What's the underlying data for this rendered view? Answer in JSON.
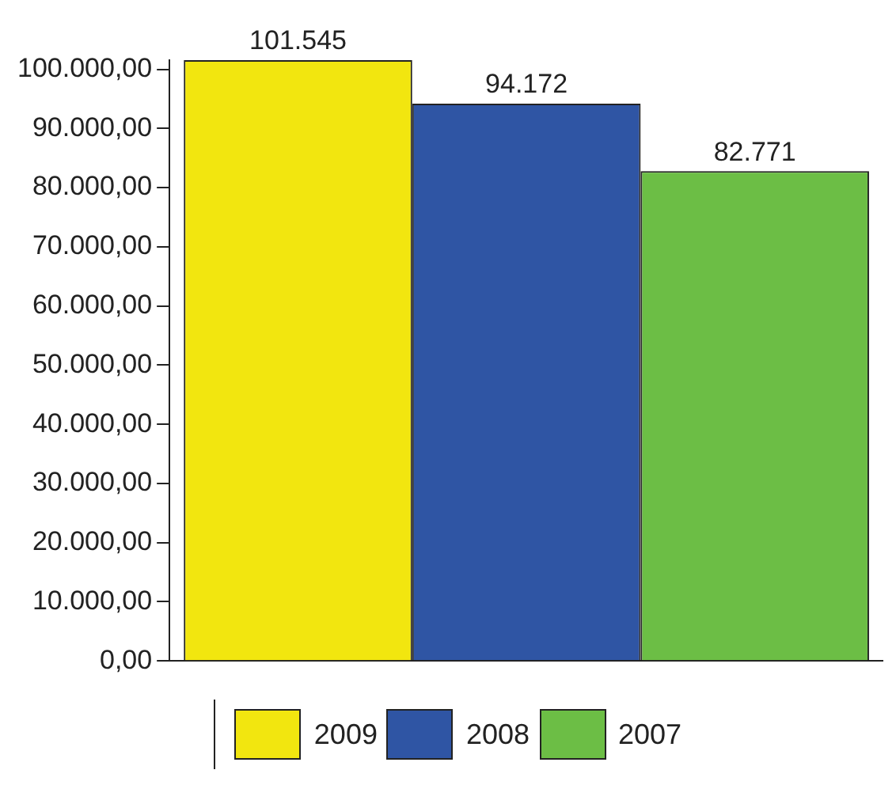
{
  "chart_data": {
    "type": "bar",
    "categories": [
      null
    ],
    "series": [
      {
        "name": "2009",
        "color": "#f2e60f",
        "values": [
          101545
        ],
        "value_labels": [
          "101.545"
        ]
      },
      {
        "name": "2008",
        "color": "#2f55a4",
        "values": [
          94172
        ],
        "value_labels": [
          "94.172"
        ]
      },
      {
        "name": "2007",
        "color": "#6cbe45",
        "values": [
          82771
        ],
        "value_labels": [
          "82.771"
        ]
      }
    ],
    "ylim": [
      0,
      101545
    ],
    "yticks": [
      {
        "value": 0,
        "label": "0,00"
      },
      {
        "value": 10000,
        "label": "10.000,00"
      },
      {
        "value": 20000,
        "label": "20.000,00"
      },
      {
        "value": 30000,
        "label": "30.000,00"
      },
      {
        "value": 40000,
        "label": "40.000,00"
      },
      {
        "value": 50000,
        "label": "50.000,00"
      },
      {
        "value": 60000,
        "label": "60.000,00"
      },
      {
        "value": 70000,
        "label": "70.000,00"
      },
      {
        "value": 80000,
        "label": "80.000,00"
      },
      {
        "value": 90000,
        "label": "90.000,00"
      },
      {
        "value": 100000,
        "label": "100.000,00"
      }
    ],
    "grid": false,
    "legend": "bottom"
  }
}
